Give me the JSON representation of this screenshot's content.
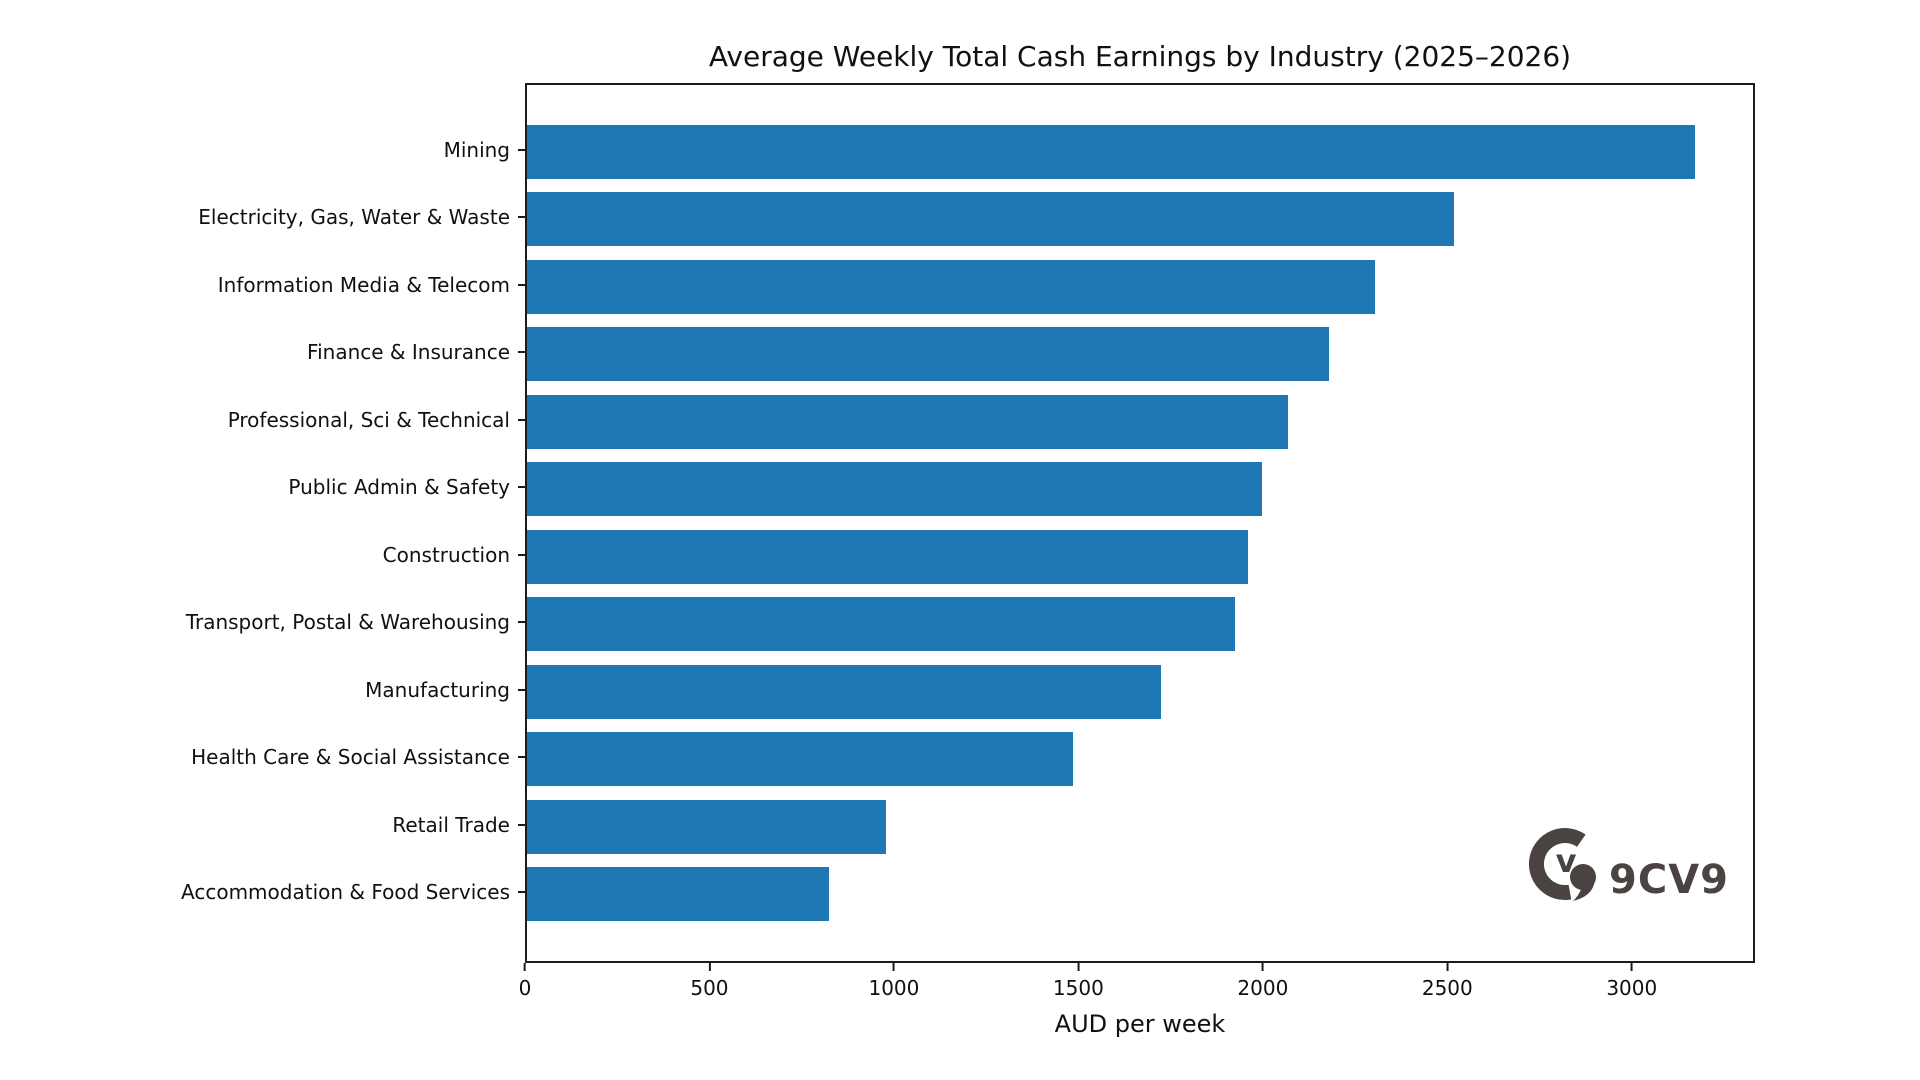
{
  "title": "Average Weekly Total Cash Earnings by Industry (2025–2026)",
  "watermark": {
    "text": "9CV9",
    "icon": "9cv9-logo",
    "color": "#4a4342"
  },
  "chart_data": {
    "type": "bar",
    "orientation": "horizontal",
    "title": "Average Weekly Total Cash Earnings by Industry (2025–2026)",
    "xlabel": "AUD per week",
    "ylabel": "",
    "categories": [
      "Mining",
      "Electricity, Gas, Water & Waste",
      "Information Media & Telecom",
      "Finance & Insurance",
      "Professional, Sci & Technical",
      "Public Admin & Safety",
      "Construction",
      "Transport, Postal & Warehousing",
      "Manufacturing",
      "Health Care & Social Assistance",
      "Retail Trade",
      "Accommodation & Food Services"
    ],
    "values": [
      3175,
      2520,
      2305,
      2180,
      2070,
      2000,
      1960,
      1925,
      1725,
      1485,
      975,
      820
    ],
    "xticks": [
      0,
      500,
      1000,
      1500,
      2000,
      2500,
      3000
    ],
    "xlim": [
      0,
      3334
    ],
    "bar_color": "#1f77b4",
    "bar_height_fraction": 0.8,
    "grid": false,
    "legend": null,
    "background": "#ffffff",
    "axis_color": "#1c1c1c"
  }
}
